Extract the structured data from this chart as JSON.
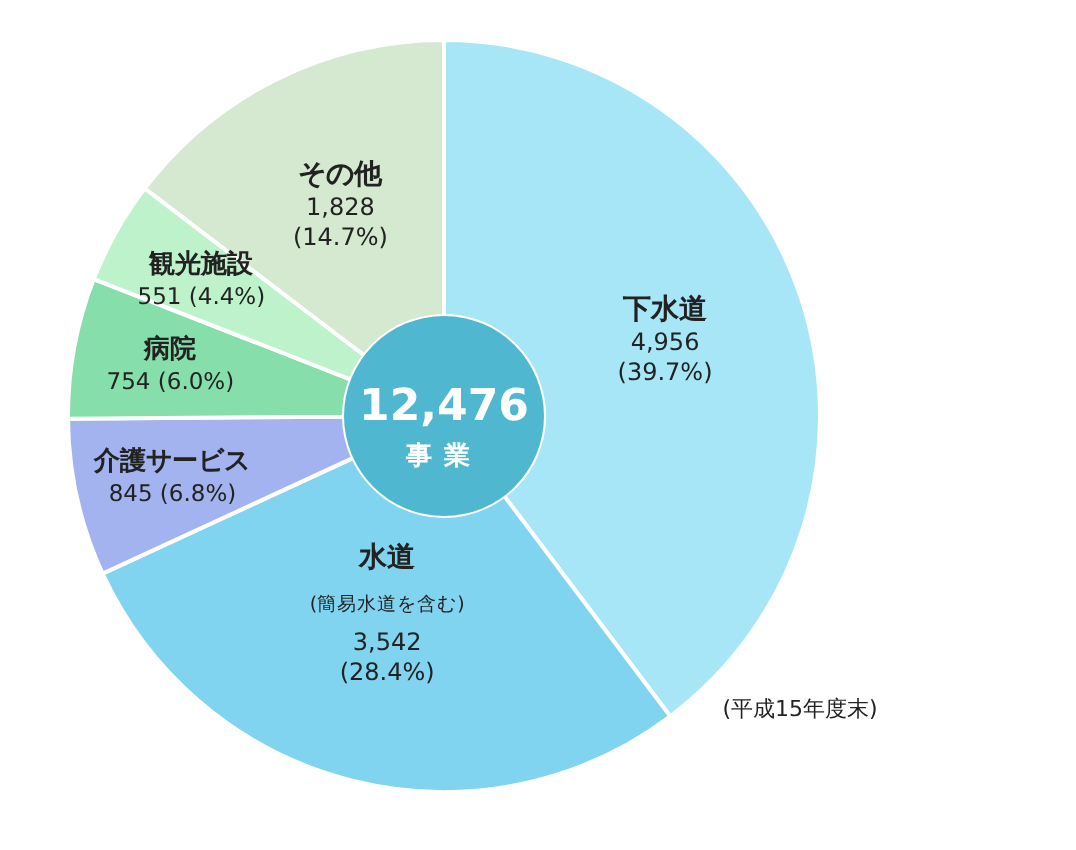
{
  "chart_data": {
    "type": "donut",
    "title": "12,476",
    "subtitle": "事業",
    "categories": [
      "下水道",
      "水道",
      "介護サービス",
      "病院",
      "観光施設",
      "その他"
    ],
    "values": [
      4956,
      3542,
      845,
      754,
      551,
      1828
    ],
    "value_labels": [
      "4,956 (39.7%)",
      "3,542 (28.4%)",
      "845 (6.8%)",
      "754 (6.0%)",
      "551 (4.4%)",
      "1,828 (14.7%)"
    ],
    "colors": [
      "#a6e6f7",
      "#80d4f0",
      "#a3b3ef",
      "#86deab",
      "#bdf2cb",
      "#d5e8d0"
    ],
    "annotations": [
      "(簡易水道を含む)",
      "(平成15年度末)"
    ]
  }
}
